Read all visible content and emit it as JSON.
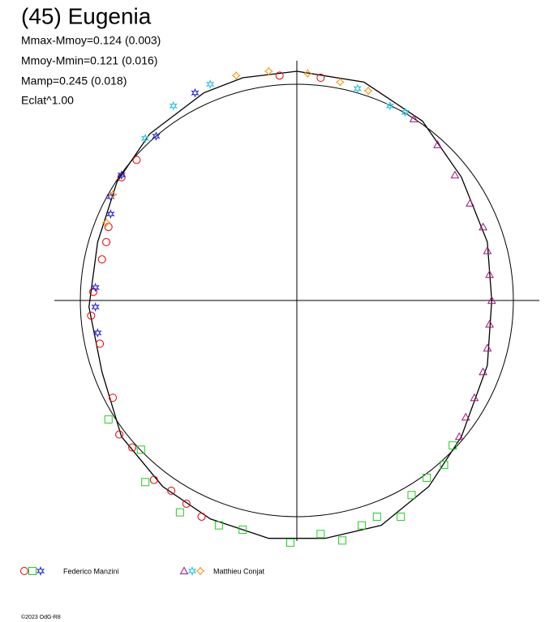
{
  "chart_data": {
    "type": "polar",
    "title": "(45) Eugenia",
    "annotations": [
      "Mmax-Mmoy=0.124 (0.003)",
      "Mmoy-Mmin=0.121 (0.016)",
      "Mamp=0.245 (0.018)",
      "Eclat^1.00"
    ],
    "copyright": "©2023 OdG-R8",
    "xlim": [
      -1.12,
      1.12
    ],
    "ylim": [
      -1.12,
      1.12
    ],
    "reference_radius": 1,
    "model": {
      "color": "#000000",
      "x": [
        0,
        0.31,
        0.58,
        0.76,
        0.88,
        0.9,
        0.88,
        0.76,
        0.61,
        0.39,
        0.13,
        -0.13,
        -0.4,
        -0.62,
        -0.81,
        -0.9,
        -0.96,
        -0.92,
        -0.83,
        -0.68,
        -0.43,
        -0.25,
        0
      ],
      "y": [
        1.06,
        1.01,
        0.83,
        0.57,
        0.27,
        0,
        -0.3,
        -0.63,
        -0.86,
        -1.04,
        -1.1,
        -1.1,
        -1.01,
        -0.86,
        -0.63,
        -0.33,
        -0.03,
        0.27,
        0.55,
        0.77,
        0.96,
        1.03,
        1.06
      ]
    },
    "observers": [
      {
        "name": "Federico Manzini",
        "series": [
          {
            "marker": "circle",
            "color": "#e00000",
            "x": [
              -0.74,
              -0.81,
              -0.87,
              -0.88,
              -0.9,
              -0.94,
              -0.95,
              -0.91,
              -0.85,
              -0.82,
              -0.76,
              -0.66,
              -0.58,
              -0.51,
              -0.44,
              -0.08,
              0.11
            ],
            "y": [
              0.65,
              0.57,
              0.34,
              0.27,
              0.19,
              0.04,
              -0.07,
              -0.2,
              -0.45,
              -0.62,
              -0.68,
              -0.83,
              -0.88,
              -0.94,
              -1.0,
              1.04,
              1.03
            ]
          },
          {
            "marker": "square",
            "color": "#22cc22",
            "x": [
              -0.87,
              -0.72,
              -0.7,
              -0.54,
              -0.36,
              -0.25,
              -0.03,
              0.11,
              0.21,
              0.3,
              0.37,
              0.48,
              0.53,
              0.6,
              0.68,
              0.72
            ],
            "y": [
              -0.55,
              -0.69,
              -0.84,
              -0.98,
              -1.04,
              -1.06,
              -1.12,
              -1.08,
              -1.11,
              -1.04,
              -1.0,
              -1.0,
              -0.9,
              -0.82,
              -0.76,
              -0.67
            ]
          },
          {
            "marker": "star",
            "color": "#2020d0",
            "x": [
              -0.65,
              -0.81,
              -0.86,
              -0.86,
              -0.93,
              -0.93,
              -0.92,
              -0.47
            ],
            "y": [
              0.76,
              0.58,
              0.48,
              0.4,
              0.06,
              -0.03,
              -0.15,
              0.96
            ]
          }
        ]
      },
      {
        "name": "Matthieu Conjat",
        "series": [
          {
            "marker": "triangle",
            "color": "#a0107a",
            "x": [
              0.54,
              0.65,
              0.73,
              0.8,
              0.86,
              0.88,
              0.89,
              0.9,
              0.89,
              0.88,
              0.86,
              0.82,
              0.78,
              0.75
            ],
            "y": [
              0.84,
              0.72,
              0.58,
              0.45,
              0.34,
              0.23,
              0.12,
              0,
              -0.11,
              -0.22,
              -0.33,
              -0.45,
              -0.54,
              -0.63
            ]
          },
          {
            "marker": "star",
            "color": "#20c0e0",
            "x": [
              -0.7,
              -0.57,
              -0.4,
              0.28,
              0.43,
              0.5
            ],
            "y": [
              0.75,
              0.9,
              1.0,
              0.98,
              0.9,
              0.87
            ]
          },
          {
            "marker": "diamond",
            "color": "#ff8c00",
            "x": [
              -0.85,
              -0.88,
              -0.28,
              -0.13,
              0.05,
              0.2,
              0.33
            ],
            "y": [
              0.49,
              0.36,
              1.04,
              1.06,
              1.05,
              1.01,
              0.97
            ]
          }
        ]
      }
    ]
  }
}
